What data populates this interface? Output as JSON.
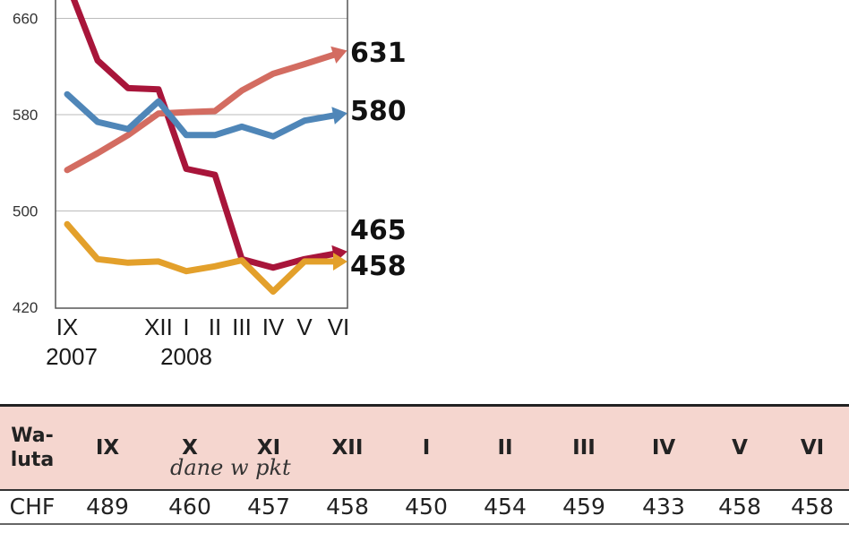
{
  "chart_data": {
    "type": "line",
    "x": [
      "IX 2007",
      "X",
      "XI",
      "XII",
      "I",
      "II",
      "III",
      "IV",
      "V",
      "VI"
    ],
    "x_tick_labels": [
      {
        "label": "IX",
        "year": "2007",
        "index": 0
      },
      {
        "label": "XII",
        "year": "",
        "index": 3
      },
      {
        "label": "I",
        "year": "2008",
        "index": 4
      },
      {
        "label": "II",
        "year": "",
        "index": 5
      },
      {
        "label": "III",
        "year": "",
        "index": 6
      },
      {
        "label": "IV",
        "year": "",
        "index": 7
      },
      {
        "label": "V",
        "year": "",
        "index": 8
      },
      {
        "label": "VI",
        "year": "",
        "index": 9
      }
    ],
    "y_ticks": [
      420,
      500,
      580,
      660
    ],
    "ylim": [
      420,
      680
    ],
    "grid": true,
    "series": [
      {
        "name": "",
        "color": "#a8153a",
        "values": [
          690,
          625,
          602,
          601,
          535,
          530,
          460,
          453,
          460,
          465
        ],
        "end_label": "465"
      },
      {
        "name": "",
        "color": "#d36c61",
        "values": [
          534,
          548,
          563,
          581,
          582,
          583,
          600,
          614,
          622,
          631
        ],
        "end_label": "631"
      },
      {
        "name": "",
        "color": "#4f86b8",
        "values": [
          597,
          574,
          568,
          591,
          563,
          563,
          570,
          562,
          575,
          580
        ],
        "end_label": "580"
      },
      {
        "name": "",
        "color": "#e3a02b",
        "values": [
          489,
          460,
          457,
          458,
          450,
          454,
          459,
          433,
          458,
          458
        ],
        "end_label": "458"
      }
    ]
  },
  "table": {
    "currency_header": [
      "Wa-",
      "luta"
    ],
    "month_headers": [
      "IX",
      "X",
      "XI",
      "XII",
      "I",
      "II",
      "III",
      "IV",
      "V",
      "VI"
    ],
    "note": "dane w pkt",
    "rows": [
      {
        "currency": "CHF",
        "values": [
          "489",
          "460",
          "457",
          "458",
          "450",
          "454",
          "459",
          "433",
          "458",
          "458"
        ]
      }
    ]
  },
  "colors": {
    "header_background": "#f5d6cf"
  }
}
